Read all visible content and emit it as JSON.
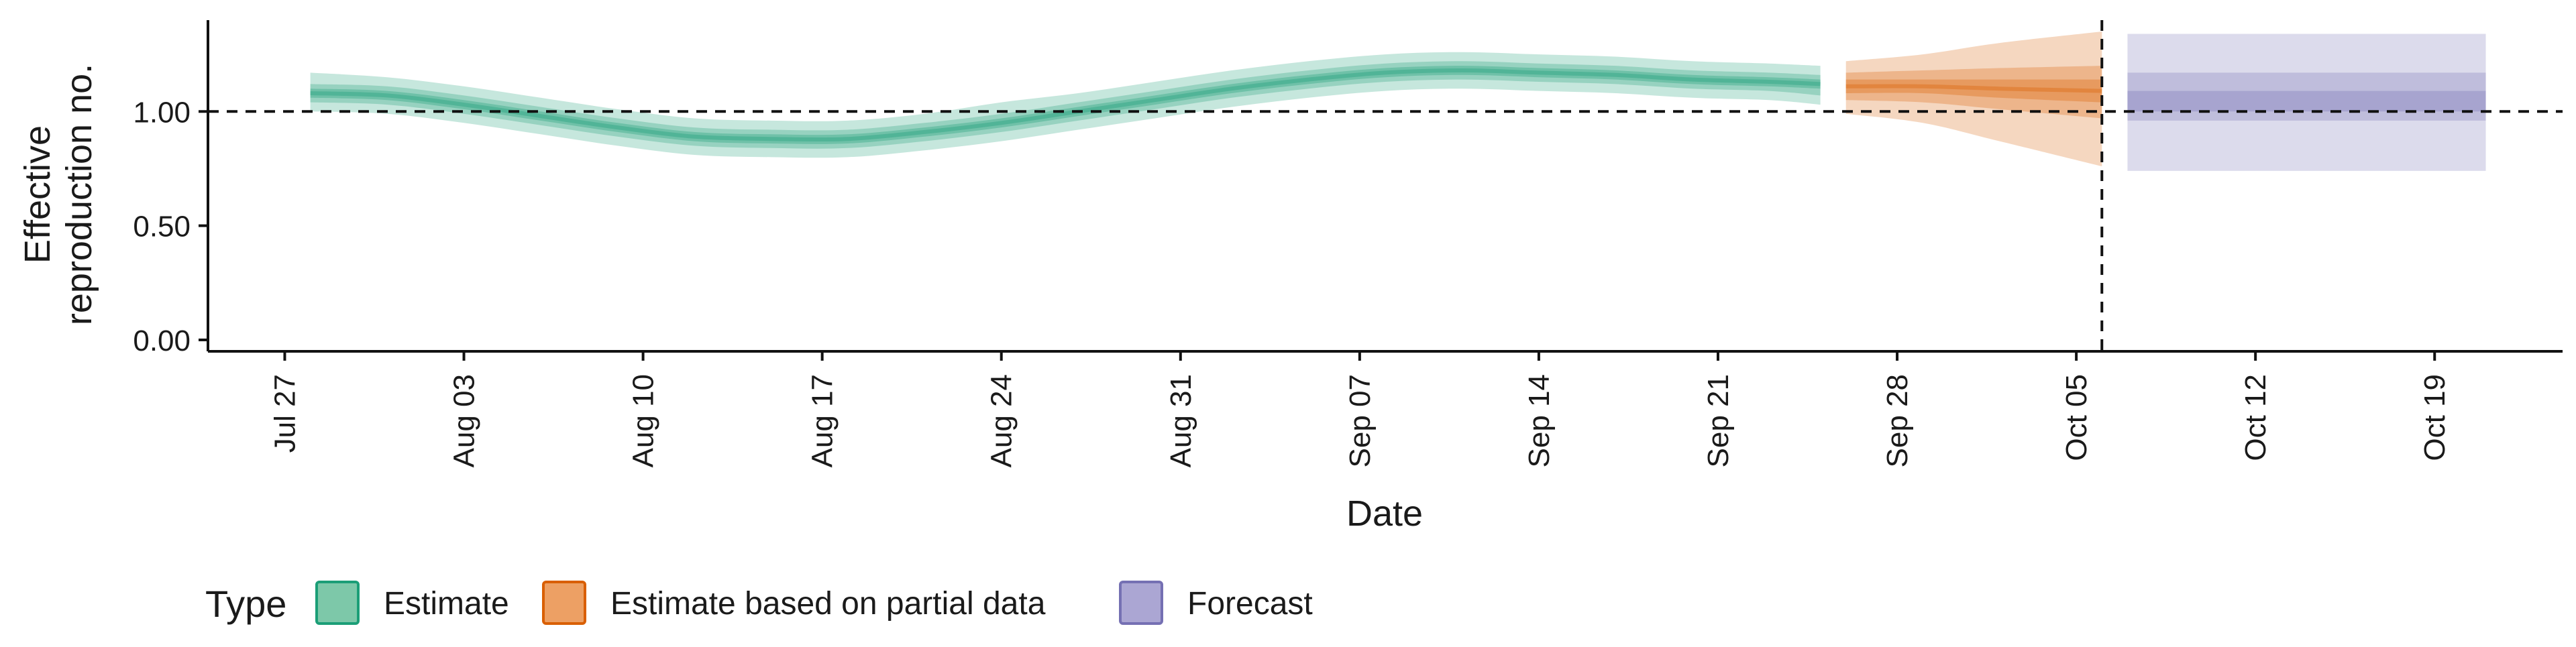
{
  "chart_data": {
    "type": "area",
    "title": "",
    "xlabel": "Date",
    "ylabel_lines": [
      "Effective",
      "reproduction no."
    ],
    "x_ticks": [
      "Jul 27",
      "Aug 03",
      "Aug 10",
      "Aug 17",
      "Aug 24",
      "Aug 31",
      "Sep 07",
      "Sep 14",
      "Sep 21",
      "Sep 28",
      "Oct 05",
      "Oct 12",
      "Oct 19"
    ],
    "x_tick_dates": [
      "2020-07-27",
      "2020-08-03",
      "2020-08-10",
      "2020-08-17",
      "2020-08-24",
      "2020-08-31",
      "2020-09-07",
      "2020-09-14",
      "2020-09-21",
      "2020-09-28",
      "2020-10-05",
      "2020-10-12",
      "2020-10-19"
    ],
    "xlim": [
      "2020-07-24",
      "2020-10-24"
    ],
    "y_ticks": [
      "0.00",
      "0.50",
      "1.00"
    ],
    "y_tick_values": [
      0,
      0.5,
      1.0
    ],
    "ylim": [
      -0.05,
      1.4
    ],
    "reference_lines": {
      "horizontal_y": 1.0,
      "vertical_x": "2020-10-06"
    },
    "grid": false,
    "legend": {
      "title": "Type",
      "placement": "bottom-left",
      "items": [
        {
          "name": "Estimate",
          "fill": "#7dc8a9",
          "stroke": "#1b9e77"
        },
        {
          "name": "Estimate based on partial data",
          "fill": "#eda064",
          "stroke": "#d95f02"
        },
        {
          "name": "Forecast",
          "fill": "#aba6d3",
          "stroke": "#7570b3"
        }
      ]
    },
    "series": [
      {
        "name": "Estimate",
        "color": "#1b9e77",
        "points": [
          {
            "x": "2020-07-28",
            "median": 1.08,
            "lower20": 1.06,
            "upper20": 1.1,
            "lower50": 1.04,
            "upper50": 1.12,
            "lower90": 1.0,
            "upper90": 1.17
          },
          {
            "x": "2020-07-31",
            "median": 1.07,
            "lower20": 1.05,
            "upper20": 1.09,
            "lower50": 1.03,
            "upper50": 1.11,
            "lower90": 0.99,
            "upper90": 1.15
          },
          {
            "x": "2020-08-03",
            "median": 1.03,
            "lower20": 1.01,
            "upper20": 1.05,
            "lower50": 0.99,
            "upper50": 1.07,
            "lower90": 0.95,
            "upper90": 1.11
          },
          {
            "x": "2020-08-06",
            "median": 0.98,
            "lower20": 0.96,
            "upper20": 1.0,
            "lower50": 0.94,
            "upper50": 1.02,
            "lower90": 0.9,
            "upper90": 1.06
          },
          {
            "x": "2020-08-09",
            "median": 0.93,
            "lower20": 0.91,
            "upper20": 0.95,
            "lower50": 0.89,
            "upper50": 0.97,
            "lower90": 0.85,
            "upper90": 1.01
          },
          {
            "x": "2020-08-12",
            "median": 0.89,
            "lower20": 0.87,
            "upper20": 0.91,
            "lower50": 0.85,
            "upper50": 0.93,
            "lower90": 0.81,
            "upper90": 0.97
          },
          {
            "x": "2020-08-15",
            "median": 0.88,
            "lower20": 0.86,
            "upper20": 0.9,
            "lower50": 0.84,
            "upper50": 0.92,
            "lower90": 0.8,
            "upper90": 0.96
          },
          {
            "x": "2020-08-18",
            "median": 0.88,
            "lower20": 0.86,
            "upper20": 0.9,
            "lower50": 0.84,
            "upper50": 0.92,
            "lower90": 0.8,
            "upper90": 0.96
          },
          {
            "x": "2020-08-21",
            "median": 0.91,
            "lower20": 0.89,
            "upper20": 0.93,
            "lower50": 0.87,
            "upper50": 0.95,
            "lower90": 0.83,
            "upper90": 0.99
          },
          {
            "x": "2020-08-24",
            "median": 0.95,
            "lower20": 0.93,
            "upper20": 0.97,
            "lower50": 0.91,
            "upper50": 0.99,
            "lower90": 0.87,
            "upper90": 1.04
          },
          {
            "x": "2020-08-27",
            "median": 1.0,
            "lower20": 0.98,
            "upper20": 1.02,
            "lower50": 0.96,
            "upper50": 1.04,
            "lower90": 0.92,
            "upper90": 1.08
          },
          {
            "x": "2020-08-30",
            "median": 1.05,
            "lower20": 1.03,
            "upper20": 1.07,
            "lower50": 1.01,
            "upper50": 1.09,
            "lower90": 0.97,
            "upper90": 1.13
          },
          {
            "x": "2020-09-02",
            "median": 1.1,
            "lower20": 1.08,
            "upper20": 1.12,
            "lower50": 1.06,
            "upper50": 1.14,
            "lower90": 1.02,
            "upper90": 1.18
          },
          {
            "x": "2020-09-05",
            "median": 1.14,
            "lower20": 1.12,
            "upper20": 1.16,
            "lower50": 1.1,
            "upper50": 1.18,
            "lower90": 1.06,
            "upper90": 1.22
          },
          {
            "x": "2020-09-08",
            "median": 1.17,
            "lower20": 1.15,
            "upper20": 1.19,
            "lower50": 1.13,
            "upper50": 1.21,
            "lower90": 1.09,
            "upper90": 1.25
          },
          {
            "x": "2020-09-11",
            "median": 1.18,
            "lower20": 1.16,
            "upper20": 1.2,
            "lower50": 1.14,
            "upper50": 1.22,
            "lower90": 1.1,
            "upper90": 1.26
          },
          {
            "x": "2020-09-14",
            "median": 1.17,
            "lower20": 1.15,
            "upper20": 1.19,
            "lower50": 1.13,
            "upper50": 1.21,
            "lower90": 1.09,
            "upper90": 1.25
          },
          {
            "x": "2020-09-17",
            "median": 1.16,
            "lower20": 1.14,
            "upper20": 1.18,
            "lower50": 1.12,
            "upper50": 1.2,
            "lower90": 1.08,
            "upper90": 1.24
          },
          {
            "x": "2020-09-20",
            "median": 1.14,
            "lower20": 1.12,
            "upper20": 1.16,
            "lower50": 1.1,
            "upper50": 1.18,
            "lower90": 1.06,
            "upper90": 1.22
          },
          {
            "x": "2020-09-23",
            "median": 1.13,
            "lower20": 1.11,
            "upper20": 1.15,
            "lower50": 1.09,
            "upper50": 1.17,
            "lower90": 1.05,
            "upper90": 1.21
          },
          {
            "x": "2020-09-25",
            "median": 1.12,
            "lower20": 1.1,
            "upper20": 1.14,
            "lower50": 1.07,
            "upper50": 1.16,
            "lower90": 1.03,
            "upper90": 1.2
          }
        ]
      },
      {
        "name": "Estimate based on partial data",
        "color": "#d95f02",
        "points": [
          {
            "x": "2020-09-26",
            "median": 1.11,
            "lower20": 1.08,
            "upper20": 1.14,
            "lower50": 1.05,
            "upper50": 1.17,
            "lower90": 0.99,
            "upper90": 1.22
          },
          {
            "x": "2020-09-29",
            "median": 1.11,
            "lower20": 1.08,
            "upper20": 1.14,
            "lower50": 1.04,
            "upper50": 1.18,
            "lower90": 0.95,
            "upper90": 1.25
          },
          {
            "x": "2020-10-02",
            "median": 1.1,
            "lower20": 1.06,
            "upper20": 1.14,
            "lower50": 1.01,
            "upper50": 1.19,
            "lower90": 0.87,
            "upper90": 1.3
          },
          {
            "x": "2020-10-06",
            "median": 1.09,
            "lower20": 1.04,
            "upper20": 1.14,
            "lower50": 0.97,
            "upper50": 1.2,
            "lower90": 0.76,
            "upper90": 1.35
          }
        ]
      },
      {
        "name": "Forecast",
        "color": "#7570b3",
        "points": [
          {
            "x": "2020-10-07",
            "median": 1.04,
            "lower20": 1.0,
            "upper20": 1.09,
            "lower50": 0.96,
            "upper50": 1.17,
            "lower90": 0.74,
            "upper90": 1.34
          },
          {
            "x": "2020-10-21",
            "median": 1.04,
            "lower20": 1.0,
            "upper20": 1.09,
            "lower50": 0.96,
            "upper50": 1.17,
            "lower90": 0.74,
            "upper90": 1.34
          }
        ]
      }
    ]
  }
}
